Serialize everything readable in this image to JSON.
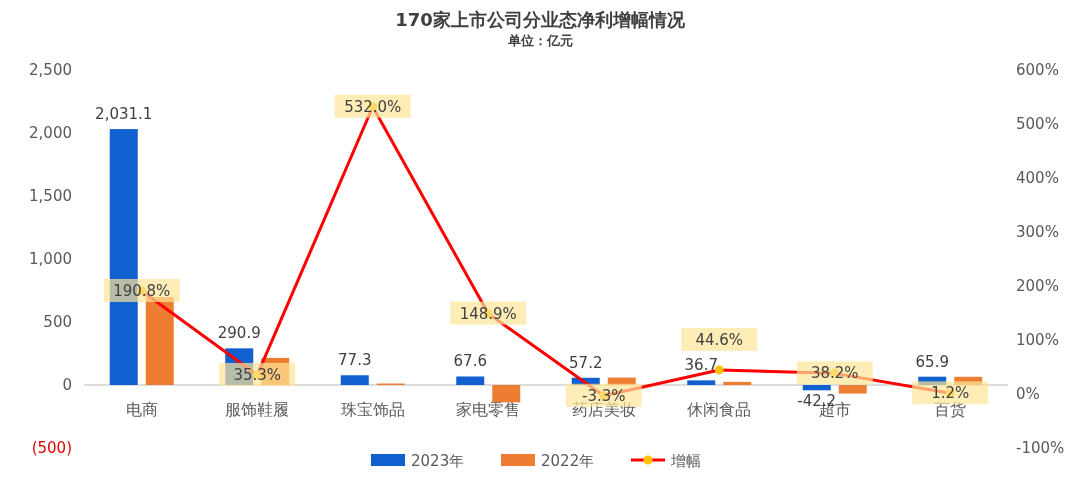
{
  "chart_data": {
    "type": "bar",
    "title": "170家上市公司分业态净利增幅情况",
    "subtitle": "单位：亿元",
    "categories": [
      "电商",
      "服饰鞋履",
      "珠宝饰品",
      "家电零售",
      "药店美妆",
      "休闲食品",
      "超市",
      "百货"
    ],
    "series": [
      {
        "name": "2023年",
        "color": "#1060d0",
        "values": [
          2031.1,
          290.9,
          77.3,
          67.6,
          57.2,
          36.7,
          -42.2,
          65.9
        ],
        "value_labels": [
          "2,031.1",
          "290.9",
          "77.3",
          "67.6",
          "57.2",
          "36.7",
          "-42.2",
          "65.9"
        ]
      },
      {
        "name": "2022年",
        "color": "#ed7d31",
        "values": [
          698,
          215,
          12,
          -138,
          59,
          25,
          -68,
          65
        ]
      },
      {
        "name": "增幅",
        "type": "line",
        "axis": "y2",
        "color": "#ff0000",
        "marker": "circle",
        "values": [
          190.8,
          35.3,
          532.0,
          148.9,
          -3.3,
          44.6,
          38.2,
          1.2
        ],
        "value_labels": [
          "190.8%",
          "35.3%",
          "532.0%",
          "148.9%",
          "-3.3%",
          "44.6%",
          "38.2%",
          "1.2%"
        ]
      }
    ],
    "ylim": [
      -500,
      2500
    ],
    "yticks": [
      {
        "value": -500,
        "label": "(500)"
      },
      0,
      500,
      {
        "value": 1000,
        "label": "1,000"
      },
      {
        "value": 1500,
        "label": "1,500"
      },
      {
        "value": 2000,
        "label": "2,000"
      },
      {
        "value": 2500,
        "label": "2,500"
      }
    ],
    "y2lim": [
      -100,
      600
    ],
    "y2ticks": [
      {
        "value": -100,
        "label": "-100%"
      },
      {
        "value": 0,
        "label": "0%"
      },
      {
        "value": 100,
        "label": "100%"
      },
      {
        "value": 200,
        "label": "200%"
      },
      {
        "value": 300,
        "label": "300%"
      },
      {
        "value": 400,
        "label": "400%"
      },
      {
        "value": 500,
        "label": "500%"
      },
      {
        "value": 600,
        "label": "600%"
      }
    ],
    "legend": "bottom",
    "grid": false
  }
}
